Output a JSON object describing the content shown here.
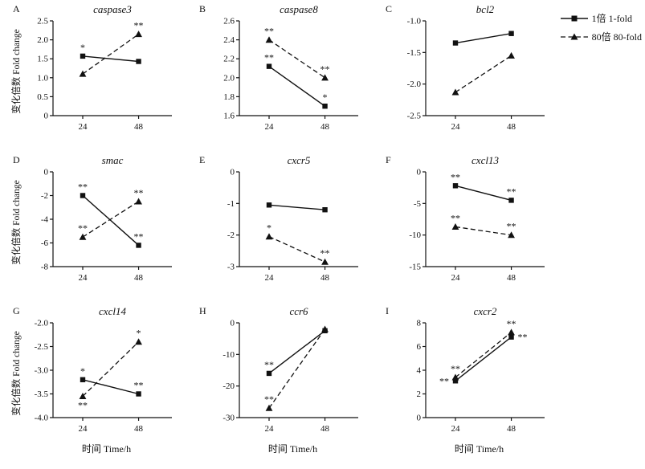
{
  "legend": {
    "items": [
      {
        "label": "1倍 1-fold",
        "marker": "square",
        "line": "solid"
      },
      {
        "label": "80倍 80-fold",
        "marker": "triangle",
        "line": "dashed"
      }
    ]
  },
  "axis": {
    "ylabel": "变化倍数 Fold change",
    "xlabel": "时间 Time/h",
    "x_categories": [
      "24",
      "48"
    ]
  },
  "chart_data": [
    {
      "panel": "A",
      "title": "caspase3",
      "type": "line",
      "x": [
        24,
        48
      ],
      "ylim": [
        0,
        2.5
      ],
      "yticks": [
        "0",
        "0.5",
        "1.0",
        "1.5",
        "2.0",
        "2.5"
      ],
      "show_ylabel": true,
      "show_xlabel": false,
      "series": [
        {
          "name": "1倍 1-fold",
          "values": [
            1.57,
            1.43
          ],
          "ann": [
            {
              "text": "*",
              "pos": "above"
            },
            null
          ]
        },
        {
          "name": "80倍 80-fold",
          "values": [
            1.1,
            2.15
          ],
          "ann": [
            null,
            {
              "text": "**",
              "pos": "above"
            }
          ]
        }
      ]
    },
    {
      "panel": "B",
      "title": "caspase8",
      "type": "line",
      "x": [
        24,
        48
      ],
      "ylim": [
        1.6,
        2.6
      ],
      "yticks": [
        "1.6",
        "1.8",
        "2.0",
        "2.2",
        "2.4",
        "2.6"
      ],
      "show_ylabel": false,
      "show_xlabel": false,
      "series": [
        {
          "name": "1倍 1-fold",
          "values": [
            2.12,
            1.7
          ],
          "ann": [
            {
              "text": "**",
              "pos": "above"
            },
            {
              "text": "*",
              "pos": "above"
            }
          ]
        },
        {
          "name": "80倍 80-fold",
          "values": [
            2.4,
            2.0
          ],
          "ann": [
            {
              "text": "**",
              "pos": "above"
            },
            {
              "text": "**",
              "pos": "above"
            }
          ]
        }
      ]
    },
    {
      "panel": "C",
      "title": "bcl2",
      "type": "line",
      "x": [
        24,
        48
      ],
      "ylim": [
        -2.5,
        -1.0
      ],
      "yticks": [
        "-1.0",
        "-1.5",
        "-2.0",
        "-2.5"
      ],
      "show_ylabel": false,
      "show_xlabel": false,
      "series": [
        {
          "name": "1倍 1-fold",
          "values": [
            -1.35,
            -1.2
          ],
          "ann": [
            null,
            null
          ]
        },
        {
          "name": "80倍 80-fold",
          "values": [
            -2.13,
            -1.55
          ],
          "ann": [
            null,
            null
          ]
        }
      ]
    },
    {
      "panel": "D",
      "title": "smac",
      "type": "line",
      "x": [
        24,
        48
      ],
      "ylim": [
        -8,
        0
      ],
      "yticks": [
        "0",
        "-2",
        "-4",
        "-6",
        "-8"
      ],
      "show_ylabel": true,
      "show_xlabel": false,
      "series": [
        {
          "name": "1倍 1-fold",
          "values": [
            -2.0,
            -6.2
          ],
          "ann": [
            {
              "text": "**",
              "pos": "above"
            },
            {
              "text": "**",
              "pos": "above"
            }
          ]
        },
        {
          "name": "80倍 80-fold",
          "values": [
            -5.5,
            -2.5
          ],
          "ann": [
            {
              "text": "**",
              "pos": "above"
            },
            {
              "text": "**",
              "pos": "above"
            }
          ]
        }
      ]
    },
    {
      "panel": "E",
      "title": "cxcr5",
      "type": "line",
      "x": [
        24,
        48
      ],
      "ylim": [
        -3,
        0
      ],
      "yticks": [
        "0",
        "-1",
        "-2",
        "-3"
      ],
      "show_ylabel": false,
      "show_xlabel": false,
      "series": [
        {
          "name": "1倍 1-fold",
          "values": [
            -1.05,
            -1.2
          ],
          "ann": [
            null,
            null
          ]
        },
        {
          "name": "80倍 80-fold",
          "values": [
            -2.05,
            -2.85
          ],
          "ann": [
            {
              "text": "*",
              "pos": "above"
            },
            {
              "text": "**",
              "pos": "above"
            }
          ]
        }
      ]
    },
    {
      "panel": "F",
      "title": "cxcl13",
      "type": "line",
      "x": [
        24,
        48
      ],
      "ylim": [
        -15,
        0
      ],
      "yticks": [
        "0",
        "-5",
        "-10",
        "-15"
      ],
      "show_ylabel": false,
      "show_xlabel": false,
      "series": [
        {
          "name": "1倍 1-fold",
          "values": [
            -2.2,
            -4.5
          ],
          "ann": [
            {
              "text": "**",
              "pos": "above"
            },
            {
              "text": "**",
              "pos": "above"
            }
          ]
        },
        {
          "name": "80倍 80-fold",
          "values": [
            -8.7,
            -10.0
          ],
          "ann": [
            {
              "text": "**",
              "pos": "above"
            },
            {
              "text": "**",
              "pos": "above"
            }
          ]
        }
      ]
    },
    {
      "panel": "G",
      "title": "cxcl14",
      "type": "line",
      "x": [
        24,
        48
      ],
      "ylim": [
        -4.0,
        -2.0
      ],
      "yticks": [
        "-2.0",
        "-2.5",
        "-3.0",
        "-3.5",
        "-4.0"
      ],
      "show_ylabel": true,
      "show_xlabel": true,
      "series": [
        {
          "name": "1倍 1-fold",
          "values": [
            -3.2,
            -3.5
          ],
          "ann": [
            {
              "text": "*",
              "pos": "above"
            },
            {
              "text": "**",
              "pos": "above"
            }
          ]
        },
        {
          "name": "80倍 80-fold",
          "values": [
            -3.55,
            -2.4
          ],
          "ann": [
            {
              "text": "**",
              "pos": "below"
            },
            {
              "text": "*",
              "pos": "above"
            }
          ]
        }
      ]
    },
    {
      "panel": "H",
      "title": "ccr6",
      "type": "line",
      "x": [
        24,
        48
      ],
      "ylim": [
        -30,
        0
      ],
      "yticks": [
        "0",
        "-10",
        "-20",
        "-30"
      ],
      "show_ylabel": false,
      "show_xlabel": true,
      "series": [
        {
          "name": "1倍 1-fold",
          "values": [
            -16.0,
            -2.5
          ],
          "ann": [
            {
              "text": "**",
              "pos": "above"
            },
            null
          ]
        },
        {
          "name": "80倍 80-fold",
          "values": [
            -27.0,
            -2.0
          ],
          "ann": [
            {
              "text": "**",
              "pos": "above"
            },
            null
          ]
        }
      ]
    },
    {
      "panel": "I",
      "title": "cxcr2",
      "type": "line",
      "x": [
        24,
        48
      ],
      "ylim": [
        0,
        8
      ],
      "yticks": [
        "0",
        "2",
        "4",
        "6",
        "8"
      ],
      "show_ylabel": false,
      "show_xlabel": true,
      "series": [
        {
          "name": "1倍 1-fold",
          "values": [
            3.1,
            6.8
          ],
          "ann": [
            {
              "text": "**",
              "pos": "left"
            },
            {
              "text": "**",
              "pos": "right"
            }
          ]
        },
        {
          "name": "80倍 80-fold",
          "values": [
            3.4,
            7.2
          ],
          "ann": [
            {
              "text": "**",
              "pos": "above"
            },
            {
              "text": "**",
              "pos": "above"
            }
          ]
        }
      ]
    }
  ]
}
